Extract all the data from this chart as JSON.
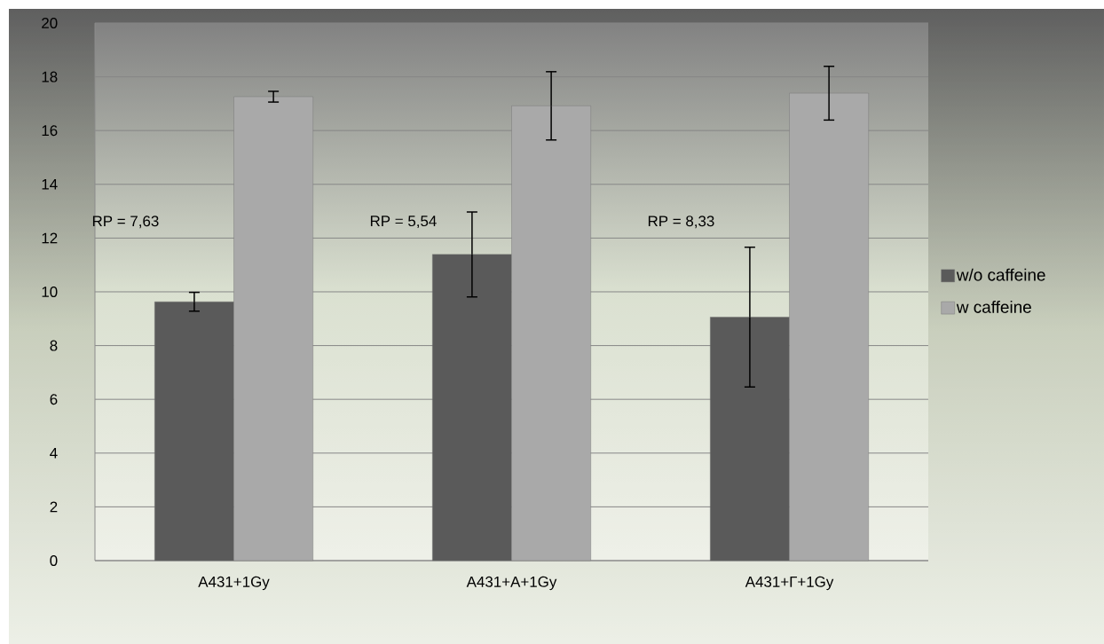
{
  "chart_data": {
    "type": "bar",
    "categories": [
      "A431+1Gy",
      "A431+A+1Gy",
      "A431+Г+1Gy"
    ],
    "series": [
      {
        "name": "w/o caffeine",
        "color": "#5a5a5a",
        "values": [
          9.63,
          11.39,
          9.06
        ],
        "errors": [
          0.35,
          1.58,
          2.6
        ]
      },
      {
        "name": "w caffeine",
        "color": "#a9a9a9",
        "values": [
          17.26,
          16.92,
          17.39
        ],
        "errors": [
          0.2,
          1.27,
          1.0
        ]
      }
    ],
    "ylim": [
      0,
      20
    ],
    "yticks": [
      0,
      2,
      4,
      6,
      8,
      10,
      12,
      14,
      16,
      18,
      20
    ],
    "grid": "y",
    "legend": "right",
    "annotations": [
      "RP = 7,63",
      "RP = 5,54",
      "RP = 8,33"
    ]
  }
}
